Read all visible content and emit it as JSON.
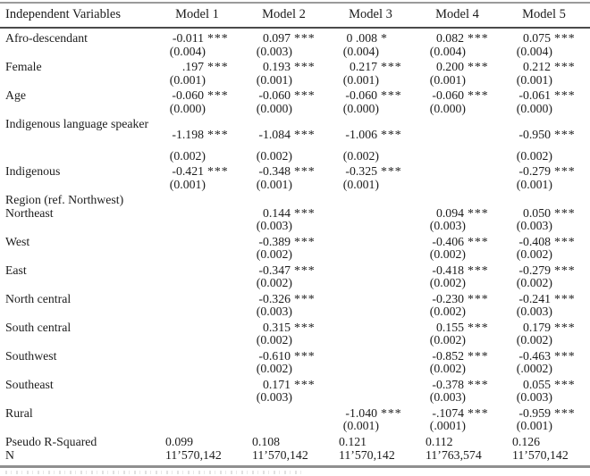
{
  "table": {
    "header": [
      "Independent Variables",
      "Model 1",
      "Model 2",
      "Model 3",
      "Model 4",
      "Model 5"
    ],
    "rows": [
      {
        "label": "Afro-descendant",
        "coef": [
          {
            "v": "-0.011",
            "s": "***"
          },
          {
            "v": "0.097",
            "s": "***"
          },
          {
            "v": "0 .008",
            "s": "*"
          },
          {
            "v": "0.082",
            "s": "***"
          },
          {
            "v": "0.075",
            "s": "***"
          }
        ],
        "se": [
          "(0.004)",
          "(0.003)",
          "(0.004)",
          "(0.004)",
          "(0.004)"
        ]
      },
      {
        "label": "Female",
        "coef": [
          {
            "v": ".197",
            "s": "***"
          },
          {
            "v": "0.193",
            "s": "***"
          },
          {
            "v": "0.217",
            "s": "***"
          },
          {
            "v": "0.200",
            "s": "***"
          },
          {
            "v": "0.212",
            "s": "***"
          }
        ],
        "se": [
          "(0.001)",
          "(0.001)",
          "(0.001)",
          "(0.001)",
          "(0.001)"
        ]
      },
      {
        "label": "Age",
        "coef": [
          {
            "v": "-0.060",
            "s": "***"
          },
          {
            "v": "-0.060",
            "s": "***"
          },
          {
            "v": "-0.060",
            "s": "***"
          },
          {
            "v": "-0.060",
            "s": "***"
          },
          {
            "v": "-0.061",
            "s": "***"
          }
        ],
        "se": [
          "(0.000)",
          "(0.000)",
          "(0.000)",
          "(0.000)",
          "(0.000)"
        ]
      },
      {
        "label": "Indigenous language speaker",
        "coef": [
          {
            "v": "-1.198",
            "s": "***"
          },
          {
            "v": "-1.084",
            "s": "***"
          },
          {
            "v": "-1.006",
            "s": "***"
          },
          null,
          {
            "v": "-0.950",
            "s": "***"
          }
        ],
        "se": [
          "(0.002)",
          "(0.002)",
          "(0.002)",
          "",
          "(0.002)"
        ]
      },
      {
        "label": "Indigenous",
        "coef": [
          {
            "v": "-0.421",
            "s": "***"
          },
          {
            "v": "-0.348",
            "s": "***"
          },
          {
            "v": "-0.325",
            "s": "***"
          },
          null,
          {
            "v": "-0.279",
            "s": "***"
          }
        ],
        "se": [
          "(0.001)",
          "(0.001)",
          "(0.001)",
          "",
          "(0.001)"
        ]
      },
      {
        "label": "Region (ref. Northwest)",
        "section": true
      },
      {
        "label": "Northeast",
        "coef": [
          null,
          {
            "v": "0.144",
            "s": "***"
          },
          null,
          {
            "v": "0.094",
            "s": "***"
          },
          {
            "v": "0.050",
            "s": "***"
          }
        ],
        "se": [
          "",
          "(0.003)",
          "",
          "(0.003)",
          "(0.003)"
        ]
      },
      {
        "label": "West",
        "coef": [
          null,
          {
            "v": "-0.389",
            "s": "***"
          },
          null,
          {
            "v": "-0.406",
            "s": "***"
          },
          {
            "v": "-0.408",
            "s": "***"
          }
        ],
        "se": [
          "",
          "(0.002)",
          "",
          "(0.002)",
          "(0.002)"
        ]
      },
      {
        "label": "East",
        "coef": [
          null,
          {
            "v": "-0.347",
            "s": "***"
          },
          null,
          {
            "v": "-0.418",
            "s": "***"
          },
          {
            "v": "-0.279",
            "s": "***"
          }
        ],
        "se": [
          "",
          "(0.002)",
          "",
          "(0.002)",
          "(0.002)"
        ]
      },
      {
        "label": "North central",
        "coef": [
          null,
          {
            "v": "-0.326",
            "s": "***"
          },
          null,
          {
            "v": "-0.230",
            "s": "***"
          },
          {
            "v": "-0.241",
            "s": "***"
          }
        ],
        "se": [
          "",
          "(0.003)",
          "",
          "(0.002)",
          "(0.003)"
        ]
      },
      {
        "label": "South central",
        "coef": [
          null,
          {
            "v": "0.315",
            "s": "***"
          },
          null,
          {
            "v": "0.155",
            "s": "***"
          },
          {
            "v": "0.179",
            "s": "***"
          }
        ],
        "se": [
          "",
          "(0.002)",
          "",
          "(0.002)",
          "(0.002)"
        ]
      },
      {
        "label": "Southwest",
        "coef": [
          null,
          {
            "v": "-0.610",
            "s": "***"
          },
          null,
          {
            "v": "-0.852",
            "s": "***"
          },
          {
            "v": "-0.463",
            "s": "***"
          }
        ],
        "se": [
          "",
          "(0.002)",
          "",
          "(0.002)",
          "(.0002)"
        ]
      },
      {
        "label": "Southeast",
        "coef": [
          null,
          {
            "v": "0.171",
            "s": "***"
          },
          null,
          {
            "v": "-0.378",
            "s": "***"
          },
          {
            "v": "0.055",
            "s": "***"
          }
        ],
        "se": [
          "",
          "(0.003)",
          "",
          "(0.003)",
          "(0.003)"
        ]
      },
      {
        "label": "Rural",
        "coef": [
          null,
          null,
          {
            "v": "-1.040",
            "s": "***"
          },
          {
            "v": "-.1074",
            "s": "***"
          },
          {
            "v": "-0.959",
            "s": "***"
          }
        ],
        "se": [
          "",
          "",
          "(0.001)",
          "(.0001)",
          "(0.001)"
        ]
      },
      {
        "label": "Pseudo R-Squared",
        "stat": [
          "0.099",
          "0.108",
          "0.121",
          "0.112",
          "0.126"
        ]
      },
      {
        "label": "N",
        "stat": [
          "11’570,142",
          "11’570,142",
          "11’570,142",
          "11’763,574",
          "11’570,142"
        ]
      }
    ]
  }
}
